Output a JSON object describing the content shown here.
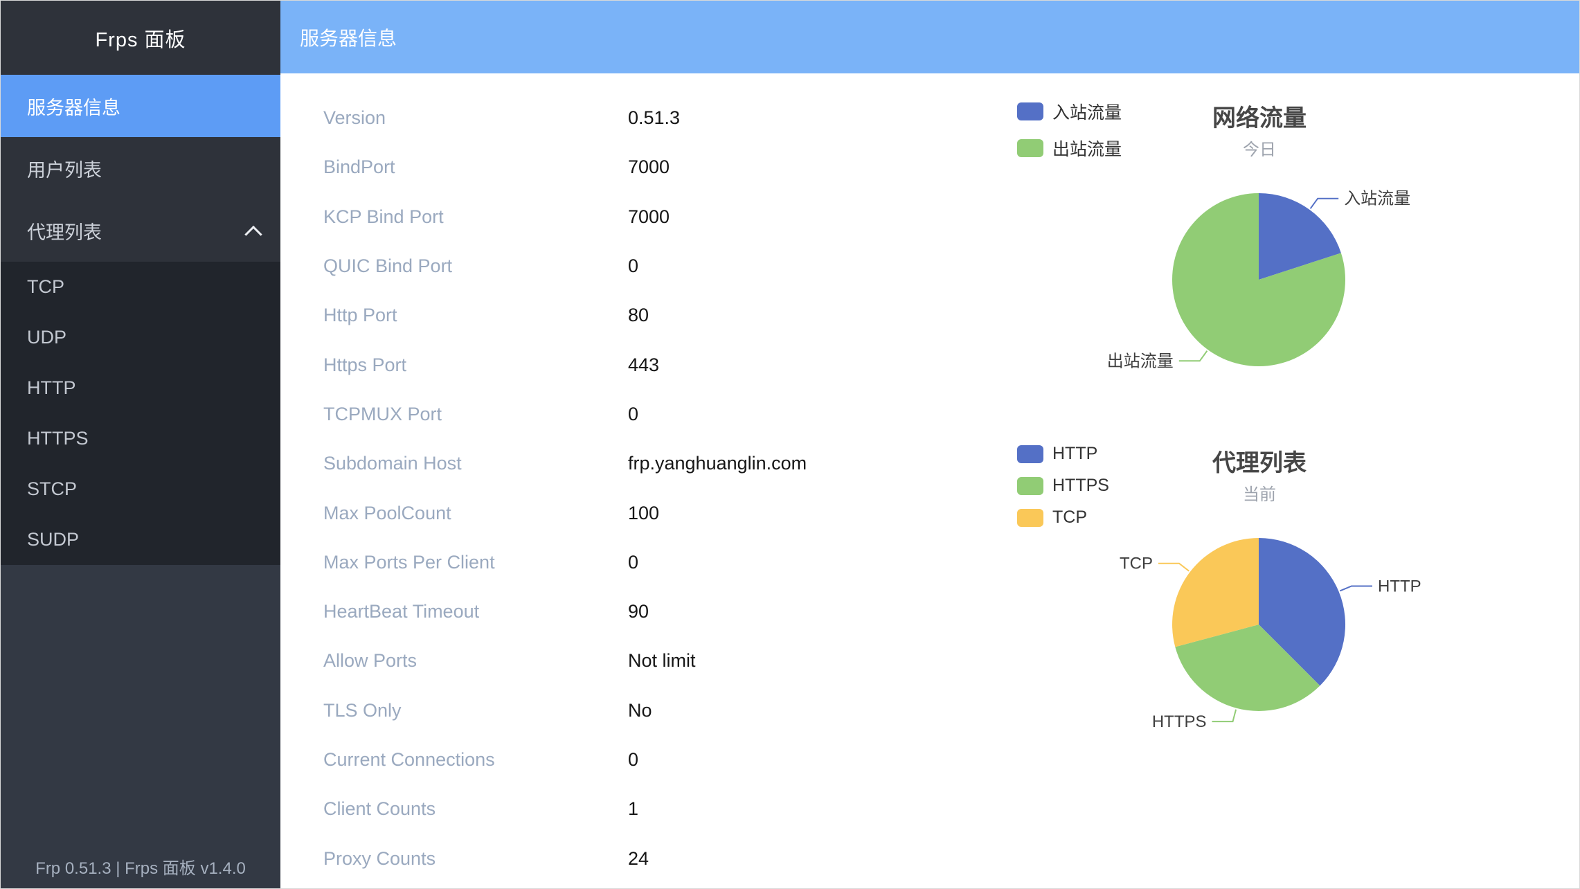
{
  "sidebar": {
    "title": "Frps 面板",
    "menu": [
      {
        "label": "服务器信息",
        "active": true
      },
      {
        "label": "用户列表",
        "active": false
      },
      {
        "label": "代理列表",
        "active": false,
        "expanded": true,
        "children": [
          "TCP",
          "UDP",
          "HTTP",
          "HTTPS",
          "STCP",
          "SUDP"
        ]
      }
    ],
    "footer": "Frp 0.51.3 | Frps 面板 v1.4.0"
  },
  "topbar": {
    "title": "服务器信息"
  },
  "server_info": {
    "rows": [
      {
        "label": "Version",
        "value": "0.51.3"
      },
      {
        "label": "BindPort",
        "value": "7000"
      },
      {
        "label": "KCP Bind Port",
        "value": "7000"
      },
      {
        "label": "QUIC Bind Port",
        "value": "0"
      },
      {
        "label": "Http Port",
        "value": "80"
      },
      {
        "label": "Https Port",
        "value": "443"
      },
      {
        "label": "TCPMUX Port",
        "value": "0"
      },
      {
        "label": "Subdomain Host",
        "value": "frp.yanghuanglin.com"
      },
      {
        "label": "Max PoolCount",
        "value": "100"
      },
      {
        "label": "Max Ports Per Client",
        "value": "0"
      },
      {
        "label": "HeartBeat Timeout",
        "value": "90"
      },
      {
        "label": "Allow Ports",
        "value": "Not limit"
      },
      {
        "label": "TLS Only",
        "value": "No"
      },
      {
        "label": "Current Connections",
        "value": "0"
      },
      {
        "label": "Client Counts",
        "value": "1"
      },
      {
        "label": "Proxy Counts",
        "value": "24"
      }
    ]
  },
  "colors": {
    "sidebar_bg": "#333944",
    "sidebar_panel_bg": "#2e323a",
    "submenu_bg": "#21252c",
    "active_item_bg": "#5d9cf5",
    "topbar_bg": "#7ab3f8",
    "info_label": "#9aa9bf",
    "pie_blue": "#5470c6",
    "pie_green": "#91cc75",
    "pie_yellow": "#fac858"
  },
  "chart_data": [
    {
      "type": "pie",
      "title": "网络流量",
      "subtitle": "今日",
      "legend_position": "top-left",
      "values_are_percent_estimates": true,
      "series": [
        {
          "name": "入站流量",
          "value": 20,
          "color": "#5470c6"
        },
        {
          "name": "出站流量",
          "value": 80,
          "color": "#91cc75"
        }
      ]
    },
    {
      "type": "pie",
      "title": "代理列表",
      "subtitle": "当前",
      "legend_position": "top-left",
      "series": [
        {
          "name": "HTTP",
          "value": 9,
          "color": "#5470c6"
        },
        {
          "name": "HTTPS",
          "value": 8,
          "color": "#91cc75"
        },
        {
          "name": "TCP",
          "value": 7,
          "color": "#fac858"
        }
      ]
    }
  ]
}
